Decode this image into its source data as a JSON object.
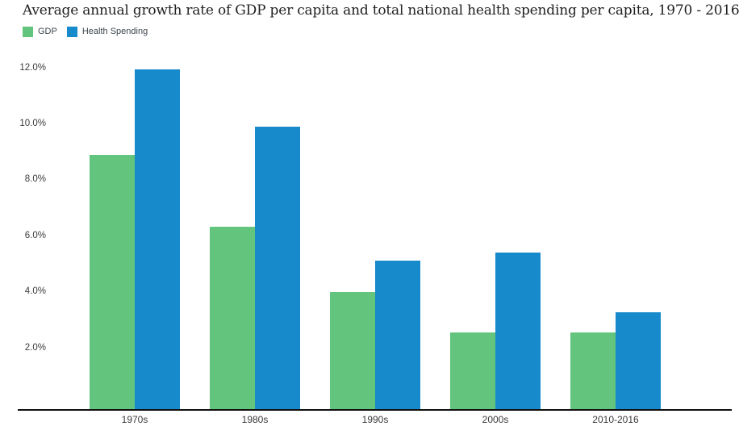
{
  "title": "Average annual growth rate of GDP per capita and total national health spending per capita, 1970 - 2016",
  "colors": {
    "gdp_green": "#62c47d",
    "health_blue": "#178acb",
    "axis_line": "#101010",
    "title_text": "#1f1f1f",
    "tick_text": "#3b3b3b",
    "background": "#ffffff"
  },
  "legend": {
    "position": "top-left",
    "items": [
      {
        "label": "GDP",
        "color": "#62c47d"
      },
      {
        "label": "Health Spending",
        "color": "#178acb"
      }
    ]
  },
  "chart_data": {
    "type": "bar",
    "title": "Average annual growth rate of GDP per capita and total national health spending per capita, 1970 - 2016",
    "categories": [
      "1970s",
      "1980s",
      "1990s",
      "2000s",
      "2010-2016"
    ],
    "series": [
      {
        "name": "GDP",
        "color": "#62c47d",
        "values": [
          8.9,
          6.4,
          4.1,
          2.7,
          2.7
        ]
      },
      {
        "name": "Health Spending",
        "color": "#178acb",
        "values": [
          11.9,
          9.9,
          5.2,
          5.5,
          3.4
        ]
      }
    ],
    "xlabel": "",
    "ylabel": "",
    "ylim": [
      0,
      12.6
    ],
    "y_ticks": [
      {
        "value": 2,
        "label": "2.0%"
      },
      {
        "value": 4,
        "label": "4.0%"
      },
      {
        "value": 6,
        "label": "6.0%"
      },
      {
        "value": 8,
        "label": "8.0%"
      },
      {
        "value": 10,
        "label": "10.0%"
      },
      {
        "value": 12,
        "label": "12.0%"
      }
    ],
    "grid": false,
    "legend_position": "top-left",
    "unit": "percent"
  }
}
